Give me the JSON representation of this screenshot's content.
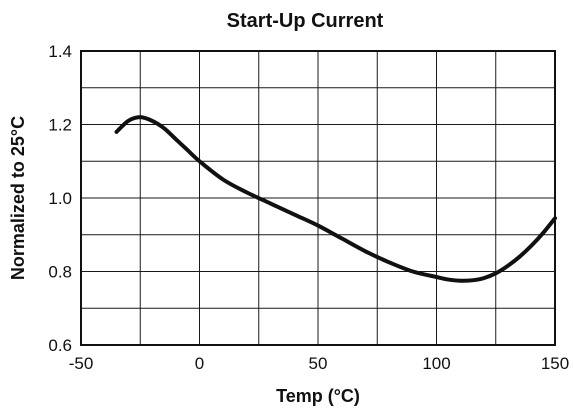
{
  "chart_data": {
    "type": "line",
    "title": "Start-Up Current",
    "xlabel": "Temp (°C)",
    "ylabel": "Normalized to 25°C",
    "xlim": [
      -50,
      150
    ],
    "ylim": [
      0.6,
      1.4
    ],
    "grid": true,
    "x_tick_labels": [
      "-50",
      "0",
      "50",
      "100",
      "150"
    ],
    "x_tick_values": [
      -50,
      0,
      50,
      100,
      150
    ],
    "x_grid_step": 25,
    "y_tick_labels": [
      "0.6",
      "0.8",
      "1.0",
      "1.2",
      "1.4"
    ],
    "y_tick_values": [
      0.6,
      0.8,
      1.0,
      1.2,
      1.4
    ],
    "y_grid_step": 0.1,
    "series": [
      {
        "x": [
          -35,
          -30,
          -25,
          -20,
          -15,
          -10,
          -5,
          0,
          10,
          20,
          30,
          40,
          50,
          60,
          70,
          80,
          90,
          100,
          105,
          110,
          115,
          120,
          125,
          130,
          135,
          140,
          145,
          150
        ],
        "values": [
          1.18,
          1.21,
          1.22,
          1.21,
          1.19,
          1.16,
          1.13,
          1.1,
          1.05,
          1.015,
          0.985,
          0.955,
          0.925,
          0.89,
          0.855,
          0.825,
          0.8,
          0.785,
          0.778,
          0.775,
          0.776,
          0.782,
          0.795,
          0.815,
          0.84,
          0.87,
          0.905,
          0.945
        ]
      }
    ]
  }
}
